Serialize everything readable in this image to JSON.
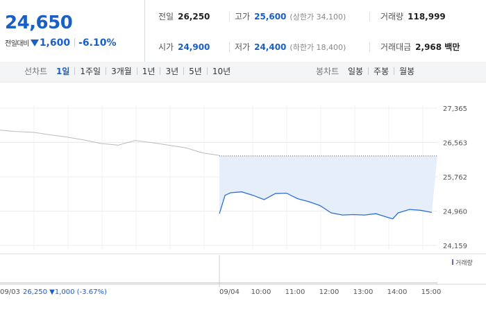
{
  "header": {
    "price": "24,650",
    "change_label": "전일대비",
    "change_amount": "1,600",
    "change_percent": "-6.10%",
    "stats": {
      "prev_close_label": "전일",
      "prev_close": "26,250",
      "high_label": "고가",
      "high": "25,600",
      "upper_limit": "(상한가 34,100)",
      "volume_label": "거래량",
      "volume": "118,999",
      "open_label": "시가",
      "open": "24,900",
      "low_label": "저가",
      "low": "24,400",
      "lower_limit": "(하한가 18,400)",
      "amount_label": "거래대금",
      "amount": "2,968 백만"
    }
  },
  "line_tabs": {
    "label": "선차트",
    "items": [
      "1일",
      "1주일",
      "3개월",
      "1년",
      "3년",
      "5년",
      "10년"
    ],
    "active": "1일"
  },
  "candle_tabs": {
    "label": "봉차트",
    "items": [
      "일봉",
      "주봉",
      "월봉"
    ]
  },
  "colors": {
    "blue": "#1a5fc4",
    "line_today": "#2a6fd6",
    "line_prev": "#bbbbbb",
    "fill": "#e6eefa",
    "volume": "#7a5fc9"
  },
  "chart_data": {
    "type": "line",
    "y_ticks": [
      "27,365",
      "26,563",
      "25,762",
      "24,960",
      "24,159"
    ],
    "ylim": [
      24159,
      27365
    ],
    "prev_day_label": "09/03",
    "prev_day_info": "26,250 ▼1,000 (-3.67%)",
    "today_label": "09/04",
    "x_ticks": [
      "10:00",
      "11:00",
      "12:00",
      "13:00",
      "14:00",
      "15:00"
    ],
    "reference_price": 26250,
    "volume_legend": "거래량",
    "series": [
      {
        "day": "09/03",
        "x": [
          "09:00",
          "09:30",
          "10:00",
          "10:30",
          "11:00",
          "11:30",
          "12:00",
          "12:30",
          "13:00",
          "13:30",
          "14:00",
          "14:30",
          "15:00",
          "15:30"
        ],
        "values": [
          26850,
          26820,
          26800,
          26740,
          26690,
          26620,
          26540,
          26500,
          26610,
          26560,
          26500,
          26440,
          26320,
          26260
        ]
      },
      {
        "day": "09/04",
        "x": [
          "09:00",
          "09:10",
          "09:20",
          "09:40",
          "10:00",
          "10:20",
          "10:40",
          "11:00",
          "11:20",
          "11:40",
          "12:00",
          "12:20",
          "12:40",
          "13:00",
          "13:20",
          "13:40",
          "14:00",
          "14:10",
          "14:20",
          "14:40",
          "15:00",
          "15:20"
        ],
        "values": [
          24900,
          25330,
          25390,
          25410,
          25330,
          25230,
          25370,
          25380,
          25250,
          25180,
          25090,
          24920,
          24870,
          24880,
          24870,
          24900,
          24820,
          24780,
          24920,
          25000,
          24980,
          24930
        ]
      }
    ]
  }
}
